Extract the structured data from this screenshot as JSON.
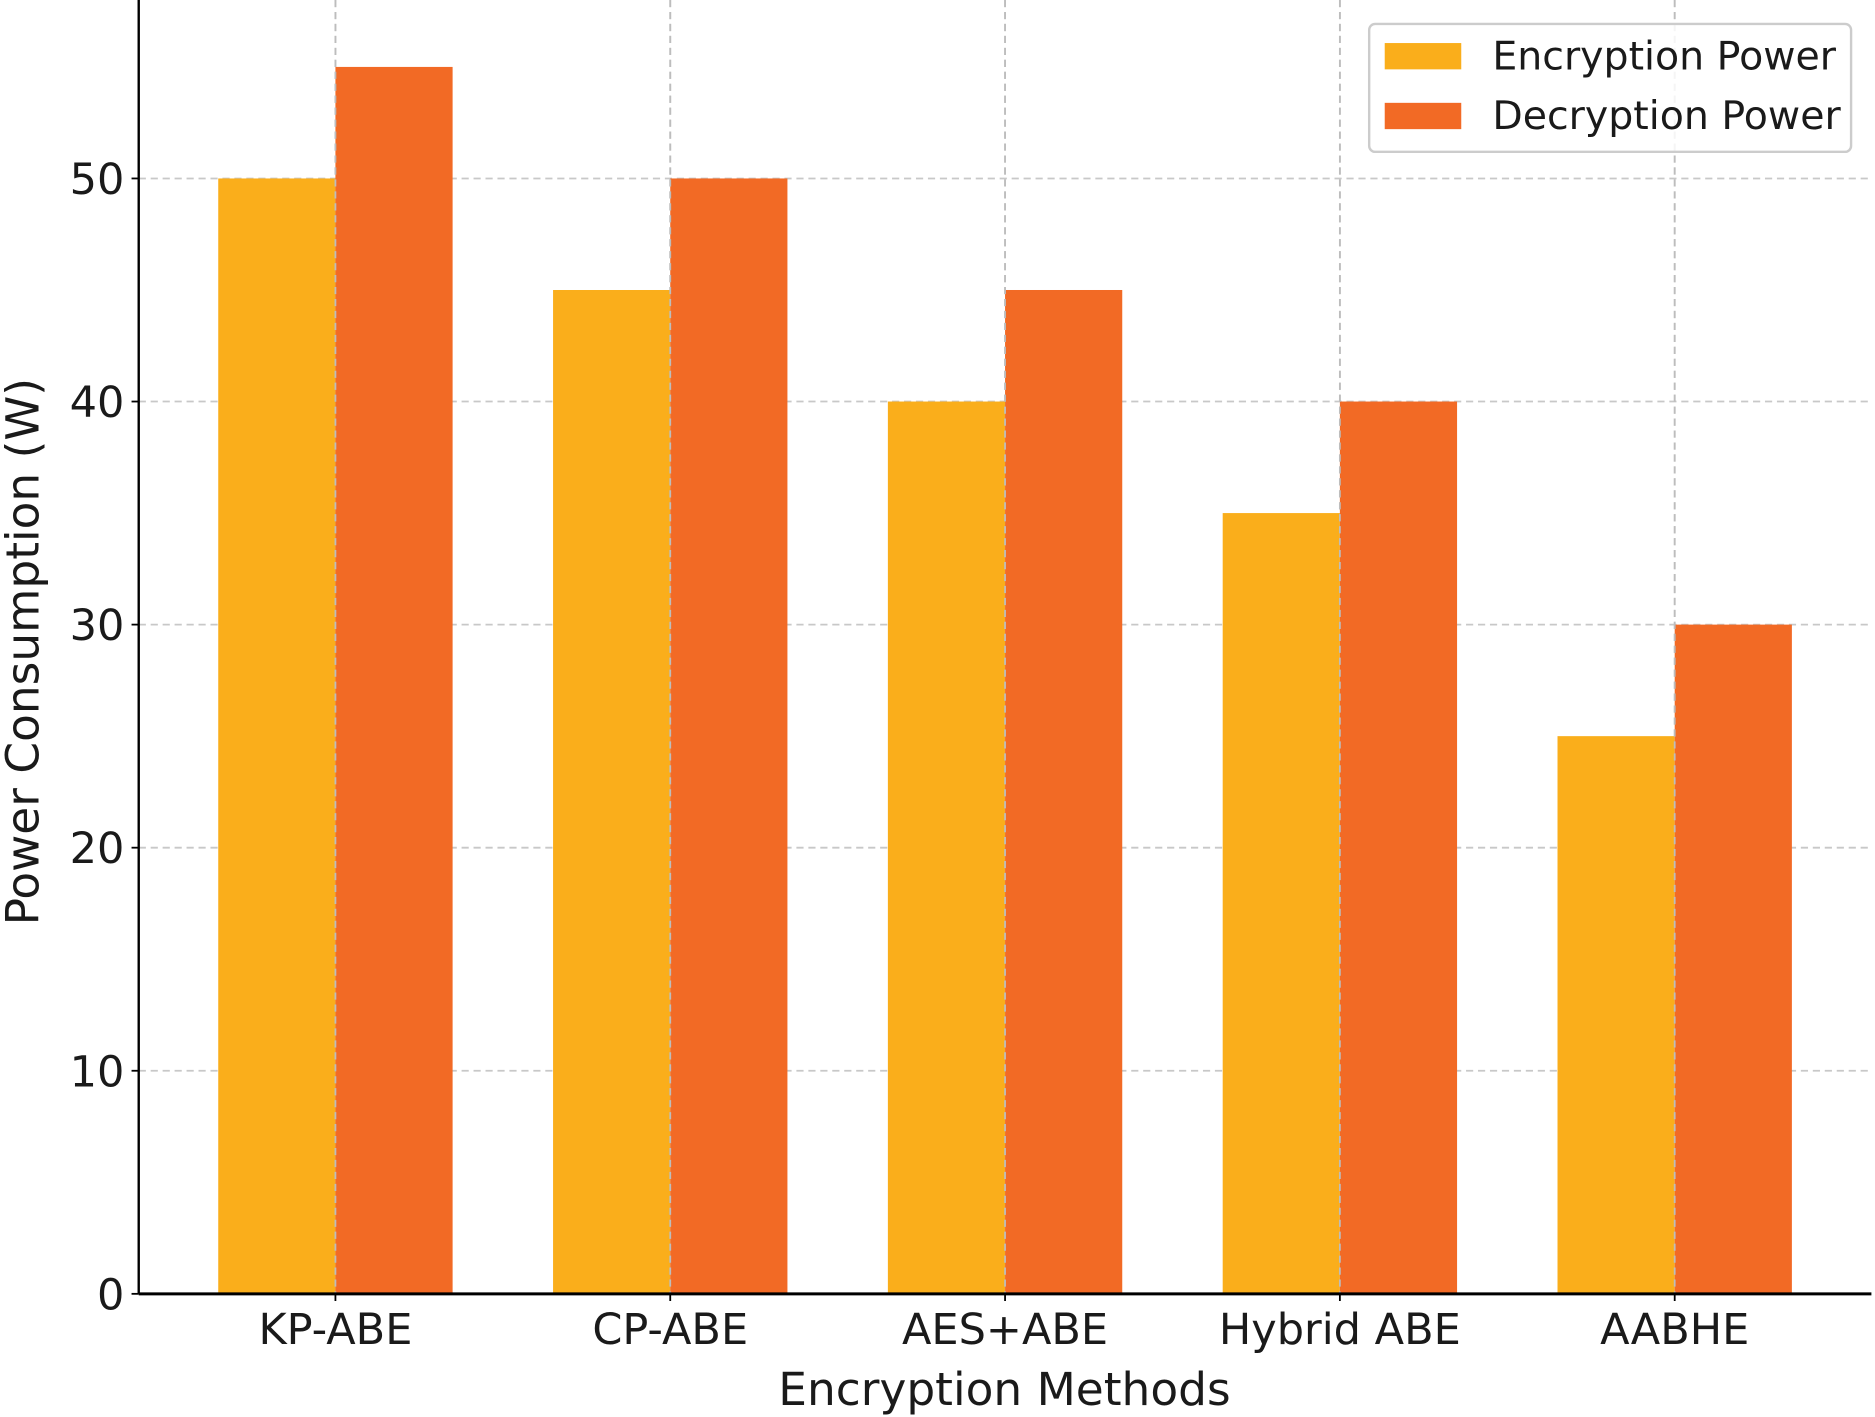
{
  "chart_data": {
    "type": "bar",
    "title": "",
    "xlabel": "Encryption Methods",
    "ylabel": "Power Consumption (W)",
    "categories": [
      "KP-ABE",
      "CP-ABE",
      "AES+ABE",
      "Hybrid ABE",
      "AABHE"
    ],
    "series": [
      {
        "name": "Encryption Power",
        "values": [
          50,
          45,
          40,
          35,
          25
        ],
        "color": "#FAAE1B"
      },
      {
        "name": "Decryption Power",
        "values": [
          55,
          50,
          45,
          40,
          30
        ],
        "color": "#F26A25"
      }
    ],
    "ylim": [
      0,
      58
    ],
    "yticks": [
      0,
      10,
      20,
      30,
      40,
      50
    ],
    "grid": true,
    "grid_style": "dashed",
    "legend_position": "top-right"
  }
}
